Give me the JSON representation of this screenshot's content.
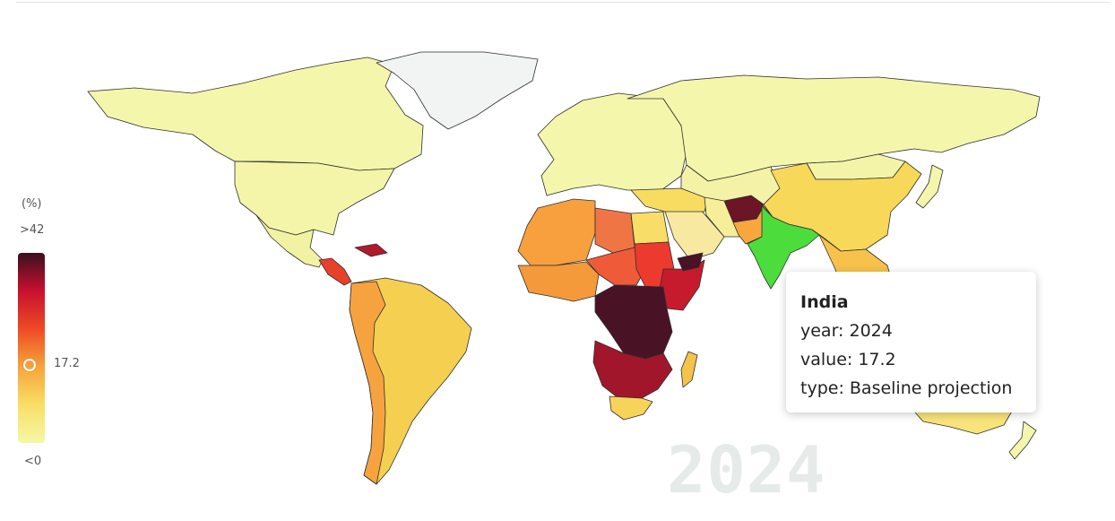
{
  "map": {
    "ocean_color": "#ffffff",
    "border_color": "#2f2f2f",
    "no_data_color": "#f2f3f3",
    "highlight_color": "#4cdd3c"
  },
  "legend": {
    "unit": "(%)",
    "max_label": ">42",
    "min_label": "<0",
    "selected_value_label": "17.2",
    "selected_value": 17.2,
    "range": [
      0,
      42
    ],
    "gradient_stops": [
      "#3a1020",
      "#c8102e",
      "#ee4a25",
      "#f6a43b",
      "#f8df66",
      "#f4f8a6"
    ]
  },
  "watermark": {
    "year": "2024"
  },
  "tooltip": {
    "title": "India",
    "year_line": "year: 2024",
    "value_line": "value: 17.2",
    "type_line": "type: Baseline projection"
  },
  "regions": [
    {
      "name": "north-america",
      "color": "#f4f6ab"
    },
    {
      "name": "usa",
      "color": "#f4f5a9"
    },
    {
      "name": "greenland",
      "color": "#f2f3f3"
    },
    {
      "name": "mexico",
      "color": "#f2f2a4"
    },
    {
      "name": "central-america",
      "color": "#e8412b"
    },
    {
      "name": "caribbean",
      "color": "#b01a2a"
    },
    {
      "name": "south-america",
      "color": "#f5cf50"
    },
    {
      "name": "andes",
      "color": "#f6a33f"
    },
    {
      "name": "europe",
      "color": "#f4f6ab"
    },
    {
      "name": "russia",
      "color": "#f4f6ab"
    },
    {
      "name": "north-africa",
      "color": "#f7a03d"
    },
    {
      "name": "libya",
      "color": "#f07545"
    },
    {
      "name": "egypt",
      "color": "#f8de68"
    },
    {
      "name": "west-africa",
      "color": "#f49a3a"
    },
    {
      "name": "sahel",
      "color": "#ef5a39"
    },
    {
      "name": "sudan",
      "color": "#ec3a2f"
    },
    {
      "name": "horn-of-africa",
      "color": "#c51b2c"
    },
    {
      "name": "central-africa",
      "color": "#4a1325"
    },
    {
      "name": "southern-africa",
      "color": "#a2162b"
    },
    {
      "name": "south-africa",
      "color": "#f8d35a"
    },
    {
      "name": "madagascar",
      "color": "#f5c24a"
    },
    {
      "name": "arabia",
      "color": "#f8e9a0"
    },
    {
      "name": "yemen",
      "color": "#4a1325"
    },
    {
      "name": "middle-east",
      "color": "#f8dc62"
    },
    {
      "name": "iran",
      "color": "#f7ee9a"
    },
    {
      "name": "afghanistan",
      "color": "#6b1526"
    },
    {
      "name": "pakistan",
      "color": "#f6a83e"
    },
    {
      "name": "central-asia",
      "color": "#f4f2a6"
    },
    {
      "name": "india",
      "color": "#4cdd3c"
    },
    {
      "name": "china",
      "color": "#f8d858"
    },
    {
      "name": "mongolia",
      "color": "#f4f4a8"
    },
    {
      "name": "southeast-asia",
      "color": "#f7c24b"
    },
    {
      "name": "japan",
      "color": "#f4f6ab"
    },
    {
      "name": "australia",
      "color": "#f8e47a"
    },
    {
      "name": "new-zealand",
      "color": "#f4f6ab"
    }
  ]
}
